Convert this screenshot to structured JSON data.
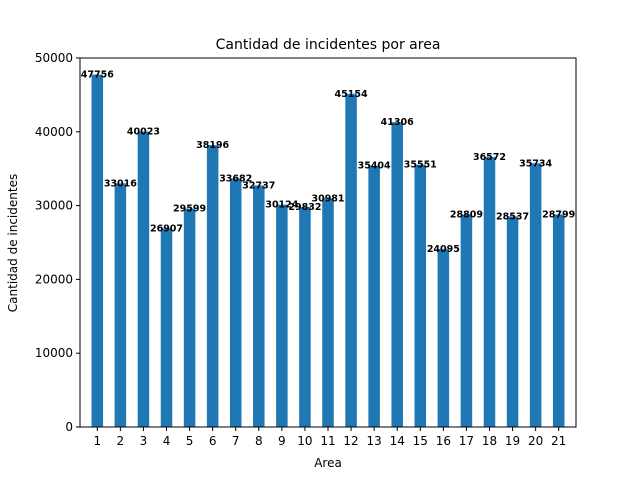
{
  "chart_data": {
    "type": "bar",
    "title": "Cantidad de incidentes por area",
    "xlabel": "Area",
    "ylabel": "Cantidad de incidentes",
    "categories": [
      "1",
      "2",
      "3",
      "4",
      "5",
      "6",
      "7",
      "8",
      "9",
      "10",
      "11",
      "12",
      "13",
      "14",
      "15",
      "16",
      "17",
      "18",
      "19",
      "20",
      "21"
    ],
    "values": [
      47756,
      33016,
      40023,
      26907,
      29599,
      38196,
      33682,
      32737,
      30124,
      29832,
      30981,
      45154,
      35404,
      41306,
      35551,
      24095,
      28809,
      36572,
      28537,
      35734,
      28799
    ],
    "ylim": [
      0,
      50000
    ],
    "yticks": [
      0,
      10000,
      20000,
      30000,
      40000,
      50000
    ],
    "bar_color": "#1f77b4",
    "grid": false,
    "legend": false
  }
}
